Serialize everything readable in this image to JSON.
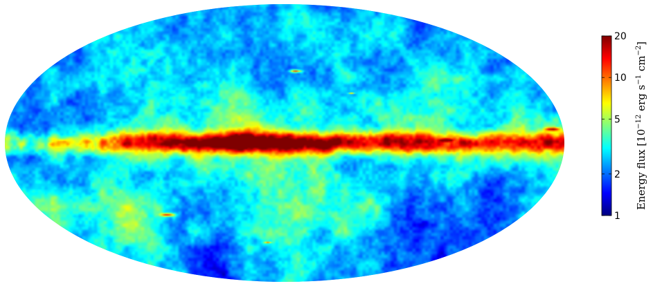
{
  "chart_data": {
    "type": "heatmap",
    "projection": "aitoff-hammer all-sky",
    "grid": false,
    "title": "",
    "colorbar": {
      "label_main": "Energy flux [10",
      "label_exp1": "−12",
      "label_mid1": " erg s",
      "label_exp2": "−1",
      "label_mid2": " cm",
      "label_exp3": "−2",
      "label_end": "]",
      "scale": "log",
      "range": [
        1,
        20
      ],
      "ticks": [
        {
          "value": 1,
          "label": "1"
        },
        {
          "value": 2,
          "label": "2"
        },
        {
          "value": 5,
          "label": "5"
        },
        {
          "value": 10,
          "label": "10"
        },
        {
          "value": 20,
          "label": "20"
        }
      ],
      "colormap": [
        "#00007f",
        "#0000ff",
        "#007fff",
        "#00ffff",
        "#7fff7f",
        "#ffff00",
        "#ff7f00",
        "#ff0000",
        "#7f0000"
      ]
    },
    "sky_map": {
      "background_level": 3,
      "galactic_plane_level": 14,
      "brightest_level": 20,
      "faintest_level": 1.5
    }
  }
}
